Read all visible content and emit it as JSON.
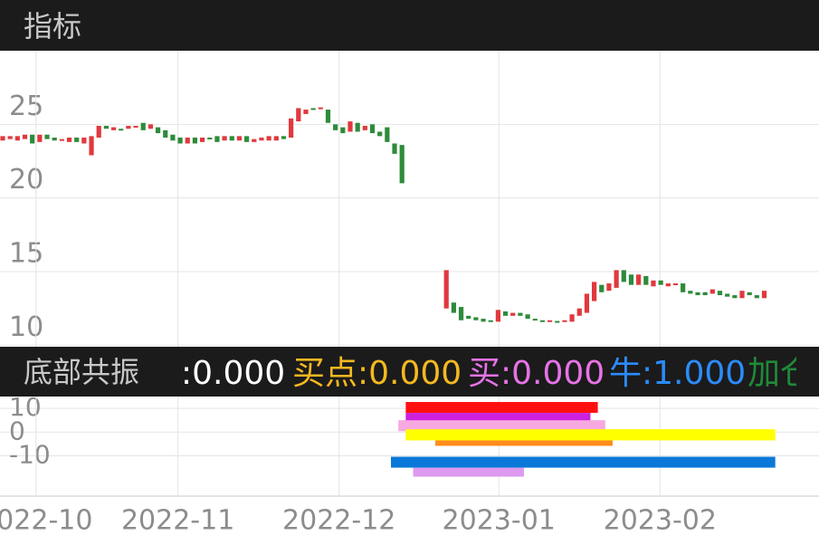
{
  "header": {
    "title": "指标"
  },
  "indicator_bar": {
    "name": "底部共振",
    "items": [
      {
        "text": ":0.000",
        "color": "#ffffff"
      },
      {
        "text": "买点:0.000",
        "color": "#f5b820"
      },
      {
        "text": "买:0.000",
        "color": "#e673e6"
      },
      {
        "text": "牛:1.000",
        "color": "#2b8cff"
      },
      {
        "text": "加仓",
        "color": "#1f8a3a"
      }
    ]
  },
  "chart_data": [
    {
      "type": "candlestick",
      "up_color": "#e0393e",
      "down_color": "#2e8b3a",
      "open": [
        23.9,
        24.0,
        23.9,
        24.0,
        24.3,
        23.8,
        24.3,
        24.1,
        23.9,
        23.8,
        24.1,
        23.7,
        22.9,
        24.1,
        24.9,
        24.6,
        24.7,
        24.7,
        24.8,
        25.1,
        24.7,
        24.8,
        24.6,
        24.3,
        24.1,
        23.7,
        24.1,
        23.8,
        24.1,
        24.2,
        23.9,
        24.2,
        23.9,
        24.2,
        23.8,
        23.9,
        23.9,
        23.9,
        24.2,
        24.1,
        25.2,
        25.7,
        26.1,
        26.05,
        26.0,
        25.0,
        24.8,
        24.5,
        25.1,
        24.6,
        25.0,
        24.5,
        24.8,
        23.7,
        23.6,
        null,
        null,
        null,
        null,
        null,
        12.5,
        12.9,
        12.6,
        12.0,
        11.9,
        11.8,
        11.7,
        11.6,
        12.3,
        12.0,
        12.2,
        12.1,
        11.8,
        11.7,
        11.6,
        11.65,
        11.6,
        11.6,
        12.0,
        12.2,
        13.0,
        14.1,
        13.7,
        13.9,
        15.1,
        14.8,
        14.1,
        14.7,
        14.0,
        14.4,
        14.0,
        14.1,
        14.2,
        13.7,
        13.6,
        13.6,
        13.5,
        13.7,
        13.5,
        13.4,
        13.2,
        13.6,
        13.4,
        13.2
      ],
      "close": [
        24.2,
        24.2,
        24.2,
        24.3,
        23.7,
        24.3,
        24.0,
        23.9,
        24.0,
        24.1,
        23.8,
        24.1,
        24.2,
        24.9,
        24.7,
        24.8,
        24.6,
        24.9,
        24.9,
        24.6,
        25.0,
        24.4,
        24.1,
        23.9,
        23.7,
        24.1,
        23.7,
        24.1,
        24.0,
        23.8,
        24.2,
        23.9,
        24.2,
        23.8,
        24.0,
        24.1,
        24.2,
        24.2,
        24.0,
        25.4,
        26.1,
        26.0,
        26.0,
        26.15,
        25.1,
        24.6,
        24.4,
        25.2,
        24.5,
        24.9,
        24.4,
        24.2,
        23.8,
        23.0,
        21.0,
        null,
        null,
        null,
        null,
        null,
        15.1,
        12.2,
        11.7,
        11.8,
        11.7,
        11.6,
        11.6,
        12.4,
        12.0,
        12.2,
        12.0,
        11.8,
        11.7,
        11.6,
        11.7,
        11.55,
        11.7,
        12.1,
        12.5,
        13.5,
        14.3,
        13.6,
        14.2,
        15.1,
        14.3,
        14.1,
        14.8,
        14.1,
        14.4,
        14.1,
        14.2,
        14.2,
        13.6,
        13.5,
        13.4,
        13.4,
        13.8,
        13.4,
        13.3,
        13.2,
        13.7,
        13.4,
        13.2,
        13.7
      ],
      "ylim": [
        9.9,
        30
      ],
      "yticks": [
        10,
        15,
        20,
        25
      ],
      "xticks": [
        {
          "value": 4.5,
          "label": "2022-10"
        },
        {
          "value": 23.7,
          "label": "2022-11"
        },
        {
          "value": 45.5,
          "label": "2022-12"
        },
        {
          "value": 67.1,
          "label": "2023-01"
        },
        {
          "value": 88.9,
          "label": "2023-02"
        }
      ],
      "grid": true
    },
    {
      "type": "bands",
      "bands": [
        {
          "color": "#ff1010",
          "from": 55,
          "to": 80,
          "low": 8.1,
          "high": 12.7
        },
        {
          "color": "#cc22dd",
          "from": 55,
          "to": 79,
          "low": 4.2,
          "high": 8.1
        },
        {
          "color": "#f7a8e0",
          "from": 54,
          "to": 81,
          "low": 0.4,
          "high": 5.0
        },
        {
          "color": "#ffff00",
          "from": 55,
          "to": 104,
          "low": -3.5,
          "high": 1.2
        },
        {
          "color": "#ff8c1a",
          "from": 59,
          "to": 82,
          "low": -5.8,
          "high": -3.5
        },
        {
          "color": "#0a78d8",
          "from": 53,
          "to": 104,
          "low": -15.0,
          "high": -10.4
        },
        {
          "color": "#dd9af0",
          "from": 56,
          "to": 70,
          "low": -18.8,
          "high": -15.0
        }
      ],
      "ylim": [
        -27,
        15
      ],
      "yticks": [
        10,
        0,
        -10
      ],
      "grid": true
    }
  ]
}
